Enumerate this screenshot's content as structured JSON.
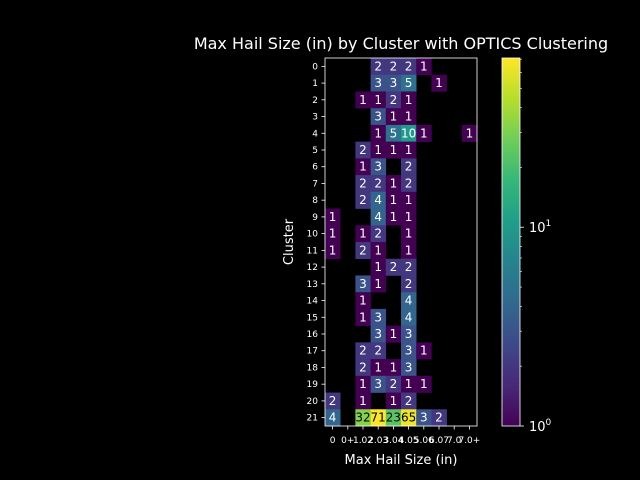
{
  "chart_data": {
    "type": "heatmap",
    "title": "Max Hail Size (in) by Cluster with OPTICS Clustering",
    "xlabel": "Max Hail Size (in)",
    "ylabel": "Cluster",
    "x_categories": [
      "0",
      "0+",
      "1.0",
      "2.0",
      "3.0",
      "4.0",
      "5.0",
      "6.0",
      "7.0",
      "7.0+"
    ],
    "x_tick_labels": [
      "0",
      "0+",
      "1.02",
      "2.03",
      "3.04",
      "4.05",
      "5.06",
      "6.07",
      "7.0",
      "7.0+"
    ],
    "y_categories": [
      "0",
      "1",
      "2",
      "3",
      "4",
      "5",
      "6",
      "7",
      "8",
      "9",
      "10",
      "11",
      "12",
      "13",
      "14",
      "15",
      "16",
      "17",
      "18",
      "19",
      "20",
      "21"
    ],
    "values": [
      [
        null,
        null,
        null,
        2,
        2,
        2,
        1,
        null,
        null,
        null
      ],
      [
        null,
        null,
        null,
        3,
        3,
        5,
        null,
        1,
        null,
        null
      ],
      [
        null,
        null,
        1,
        1,
        2,
        1,
        null,
        null,
        null,
        null
      ],
      [
        null,
        null,
        null,
        3,
        1,
        1,
        null,
        null,
        null,
        null
      ],
      [
        null,
        null,
        null,
        1,
        5,
        10,
        1,
        null,
        null,
        1
      ],
      [
        null,
        null,
        2,
        1,
        1,
        1,
        null,
        null,
        null,
        null
      ],
      [
        null,
        null,
        1,
        3,
        null,
        2,
        null,
        null,
        null,
        null
      ],
      [
        null,
        null,
        2,
        2,
        1,
        2,
        null,
        null,
        null,
        null
      ],
      [
        null,
        null,
        2,
        4,
        1,
        1,
        null,
        null,
        null,
        null
      ],
      [
        1,
        null,
        null,
        4,
        1,
        1,
        null,
        null,
        null,
        null
      ],
      [
        1,
        null,
        1,
        2,
        null,
        1,
        null,
        null,
        null,
        null
      ],
      [
        1,
        null,
        2,
        1,
        null,
        1,
        null,
        null,
        null,
        null
      ],
      [
        null,
        null,
        null,
        1,
        2,
        2,
        null,
        null,
        null,
        null
      ],
      [
        null,
        null,
        3,
        1,
        null,
        2,
        null,
        null,
        null,
        null
      ],
      [
        null,
        null,
        1,
        null,
        null,
        4,
        null,
        null,
        null,
        null
      ],
      [
        null,
        null,
        1,
        3,
        null,
        4,
        null,
        null,
        null,
        null
      ],
      [
        null,
        null,
        null,
        3,
        1,
        3,
        null,
        null,
        null,
        null
      ],
      [
        null,
        null,
        2,
        2,
        null,
        3,
        1,
        null,
        null,
        null
      ],
      [
        null,
        null,
        2,
        1,
        1,
        3,
        null,
        null,
        null,
        null
      ],
      [
        null,
        null,
        1,
        3,
        2,
        1,
        1,
        null,
        null,
        null
      ],
      [
        2,
        null,
        1,
        null,
        1,
        2,
        null,
        null,
        null,
        null
      ],
      [
        4,
        null,
        32,
        71,
        23,
        65,
        3,
        2,
        null,
        null
      ]
    ],
    "colorbar": {
      "scale": "log",
      "range": [
        1,
        71
      ],
      "ticks": [
        {
          "value": 1,
          "base": "10",
          "exp": "0"
        },
        {
          "value": 10,
          "base": "10",
          "exp": "1"
        }
      ]
    },
    "colormap": "viridis",
    "grid": false,
    "legend": "none"
  }
}
